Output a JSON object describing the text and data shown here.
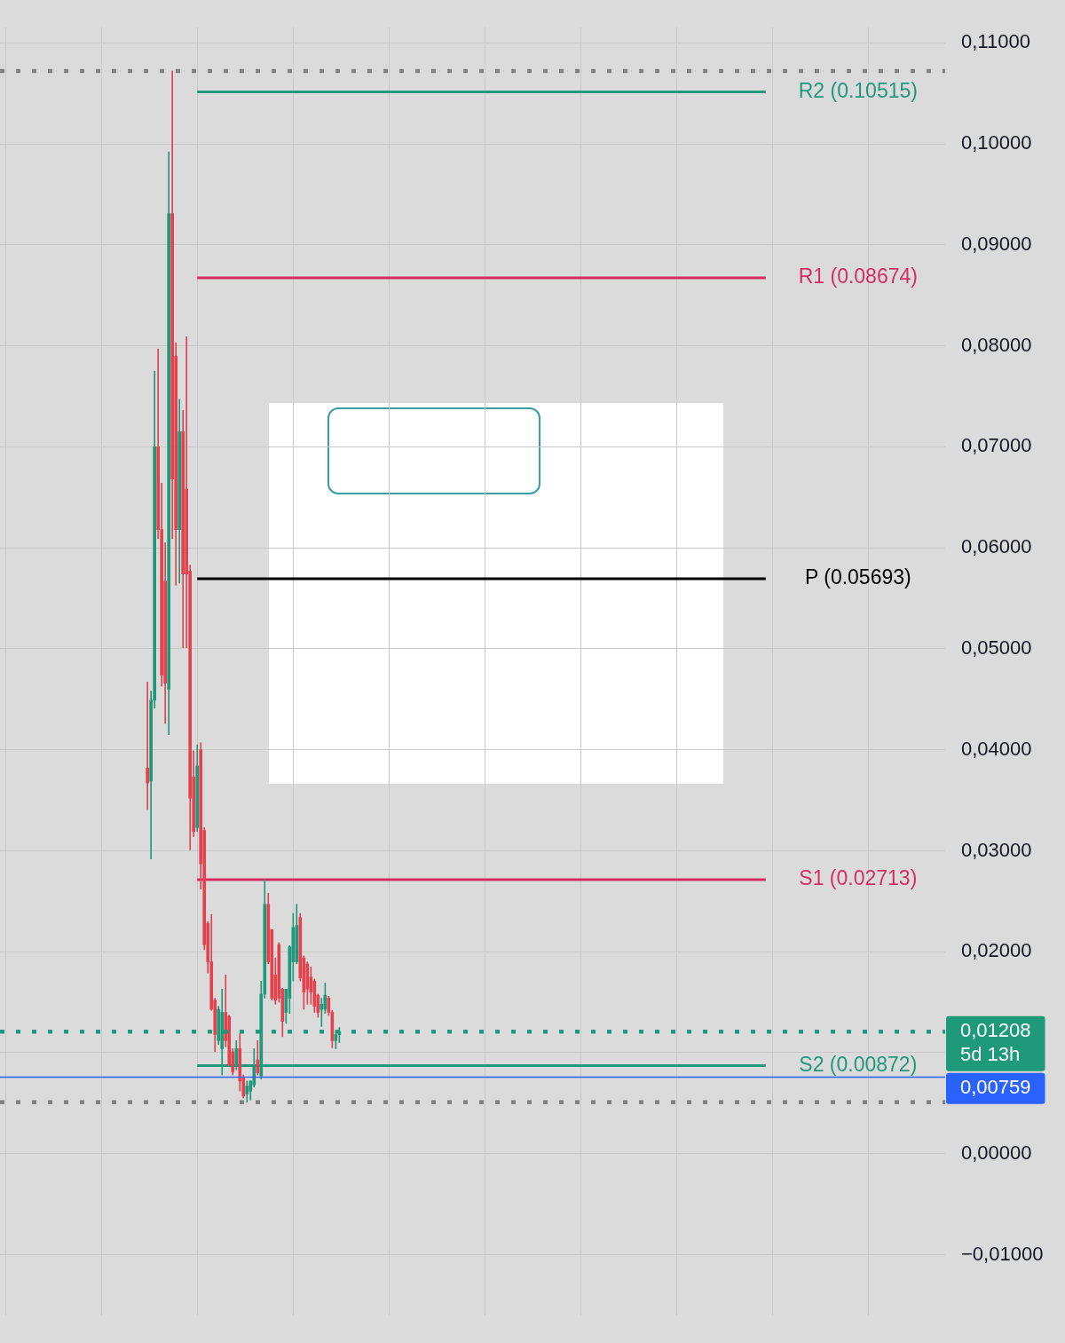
{
  "chart_data": {
    "type": "candlestick",
    "categories": [
      null,
      null,
      null,
      null,
      null,
      null,
      null,
      null,
      null,
      null,
      null,
      null,
      null,
      null,
      null,
      null,
      null,
      null,
      null,
      null,
      null,
      null,
      null,
      null,
      null,
      null,
      null,
      null,
      null,
      null,
      null,
      null,
      null,
      null,
      null,
      null,
      null,
      null,
      null,
      null,
      null,
      null,
      null,
      null,
      null,
      null,
      null,
      null,
      null,
      null,
      null,
      null,
      null,
      null,
      null,
      null,
      null,
      null,
      null,
      null,
      null,
      null,
      null,
      null,
      null,
      null,
      null,
      null,
      null,
      null,
      null,
      null,
      null,
      null,
      null,
      null,
      null,
      null,
      null,
      null,
      null,
      null,
      null,
      null,
      null,
      null,
      null,
      null,
      null,
      null,
      null,
      null,
      null,
      null,
      null,
      null,
      null,
      null,
      null,
      null,
      null,
      null,
      null,
      null,
      null,
      null,
      null,
      null,
      null,
      null,
      null,
      null,
      null,
      null,
      null,
      null,
      null,
      null,
      null,
      null,
      null,
      null,
      null,
      null,
      null,
      null,
      null,
      null,
      null,
      null,
      null,
      null,
      null,
      null,
      null,
      null,
      null,
      null,
      null,
      null,
      null,
      null,
      null,
      null,
      null,
      null,
      null,
      null,
      null,
      null,
      null,
      null,
      null,
      null,
      null,
      null,
      null,
      null,
      null,
      null,
      null,
      null,
      null,
      null,
      null,
      null,
      null,
      null,
      null,
      null,
      null,
      null,
      null,
      null,
      null,
      null,
      null,
      null,
      null,
      null,
      null,
      null,
      null,
      null,
      null,
      null,
      null,
      null,
      null,
      null,
      null,
      null,
      null,
      null,
      null,
      null,
      null,
      null,
      null,
      null,
      null,
      null,
      null,
      null,
      null,
      null,
      null,
      null,
      null,
      null,
      null,
      null,
      null,
      null,
      null,
      null,
      null,
      null,
      null,
      null,
      null,
      null,
      null,
      null,
      null,
      null,
      null,
      null,
      null,
      null,
      null,
      null,
      null,
      null,
      null,
      null,
      null,
      null,
      null,
      null,
      null,
      null,
      null,
      null,
      null,
      null,
      null,
      null,
      null,
      null,
      null,
      null,
      null,
      null,
      null,
      null,
      null,
      null,
      null,
      null,
      null,
      null,
      null,
      null,
      null,
      null
    ],
    "ohlc": [
      null,
      null,
      null,
      null,
      null,
      null,
      null,
      null,
      null,
      null,
      null,
      null,
      null,
      null,
      null,
      null,
      null,
      null,
      null,
      null,
      null,
      null,
      null,
      null,
      null,
      null,
      null,
      null,
      null,
      null,
      null,
      null,
      null,
      null,
      null,
      null,
      null,
      null,
      null,
      null,
      null,
      [
        0.0382,
        0.0467,
        0.0341,
        0.0367
      ],
      [
        0.0369,
        0.0458,
        0.0292,
        0.0449
      ],
      [
        0.0449,
        0.0775,
        0.0441,
        0.07
      ],
      [
        0.07,
        0.0797,
        0.0609,
        0.0618
      ],
      [
        0.0618,
        0.0664,
        0.0463,
        0.0474
      ],
      [
        0.0567,
        0.0605,
        0.0426,
        0.0466
      ],
      [
        0.046,
        0.0992,
        0.0415,
        0.0931
      ],
      [
        0.0931,
        0.1072,
        0.0609,
        0.0668
      ],
      [
        0.079,
        0.0803,
        0.0563,
        0.0618
      ],
      [
        0.0618,
        0.0747,
        0.0565,
        0.0715
      ],
      [
        0.0715,
        0.0736,
        0.0501,
        0.0574
      ],
      [
        0.0658,
        0.0809,
        0.0501,
        0.0574
      ],
      [
        0.0577,
        0.0583,
        0.0301,
        0.0352
      ],
      [
        0.0373,
        0.0399,
        0.0314,
        0.0319
      ],
      [
        0.0323,
        0.0405,
        0.0319,
        0.0384
      ],
      [
        0.04,
        0.0407,
        0.0262,
        0.0287
      ],
      [
        0.032,
        0.0323,
        0.0202,
        0.0207
      ],
      [
        0.0228,
        0.023,
        0.0179,
        0.019
      ],
      [
        0.019,
        0.0237,
        0.0142,
        0.0143
      ],
      [
        0.0152,
        0.0154,
        0.0101,
        0.0118
      ],
      [
        0.0112,
        0.0146,
        0.0108,
        0.0143
      ],
      [
        0.0104,
        0.0163,
        0.0078,
        0.014
      ],
      [
        0.014,
        0.0177,
        0.0106,
        0.0112
      ],
      [
        0.0136,
        0.0137,
        0.0087,
        0.0088
      ],
      [
        0.0101,
        0.0104,
        0.0078,
        0.0081
      ],
      [
        0.0087,
        0.0112,
        0.0083,
        0.0104
      ],
      [
        0.0104,
        0.0119,
        0.0062,
        0.0072
      ],
      [
        0.0076,
        0.0078,
        0.0055,
        0.0057
      ],
      [
        0.0059,
        0.0072,
        0.0051,
        0.0067
      ],
      [
        0.0062,
        0.0072,
        0.0053,
        0.0072
      ],
      [
        0.0068,
        0.0104,
        0.0066,
        0.0088
      ],
      [
        0.0093,
        0.0112,
        0.0078,
        0.008
      ],
      [
        0.0077,
        0.0171,
        0.0074,
        0.0158
      ],
      [
        0.0158,
        0.0272,
        0.0154,
        0.0247
      ],
      [
        0.0247,
        0.0258,
        0.0188,
        0.019
      ],
      [
        0.0222,
        0.0222,
        0.0152,
        0.0154
      ],
      [
        0.0177,
        0.0194,
        0.0148,
        0.0152
      ],
      [
        0.0207,
        0.0209,
        0.015,
        0.0154
      ],
      [
        0.0163,
        0.0164,
        0.0116,
        0.0131
      ],
      [
        0.014,
        0.0163,
        0.0129,
        0.0163
      ],
      [
        0.0154,
        0.0206,
        0.0139,
        0.0205
      ],
      [
        0.019,
        0.0238,
        0.0171,
        0.0224
      ],
      [
        0.019,
        0.0247,
        0.0188,
        0.0226
      ],
      [
        0.0234,
        0.0238,
        0.0171,
        0.0174
      ],
      [
        0.0194,
        0.0196,
        0.0143,
        0.016
      ],
      [
        0.0188,
        0.019,
        0.0148,
        0.0163
      ],
      [
        0.0175,
        0.0185,
        0.0148,
        0.016
      ],
      [
        0.0171,
        0.0173,
        0.014,
        0.0146
      ],
      [
        0.0157,
        0.0158,
        0.0135,
        0.014
      ],
      [
        0.0143,
        0.0154,
        0.0126,
        0.0148
      ],
      [
        0.0143,
        0.0169,
        0.0139,
        0.0157
      ],
      [
        0.0154,
        0.0156,
        0.0137,
        0.014
      ],
      [
        0.014,
        0.0142,
        0.0105,
        0.0112
      ],
      [
        0.0112,
        0.0122,
        0.0104,
        0.0118
      ],
      [
        0.0118,
        0.0125,
        0.011,
        0.01208
      ],
      null,
      null,
      null,
      null,
      null,
      null,
      null,
      null,
      null,
      null,
      null,
      null,
      null,
      null,
      null,
      null,
      null,
      null,
      null,
      null,
      null,
      null,
      null,
      null,
      null,
      null,
      null,
      null,
      null,
      null,
      null,
      null,
      null,
      null,
      null,
      null,
      null,
      null,
      null,
      null,
      null,
      null,
      null,
      null,
      null,
      null,
      null,
      null,
      null,
      null,
      null,
      null,
      null,
      null,
      null,
      null,
      null,
      null,
      null,
      null,
      null,
      null,
      null,
      null,
      null,
      null,
      null,
      null,
      null,
      null,
      null,
      null,
      null,
      null,
      null,
      null,
      null,
      null,
      null,
      null,
      null,
      null,
      null,
      null,
      null,
      null,
      null,
      null,
      null,
      null,
      null,
      null,
      null,
      null,
      null,
      null,
      null,
      null,
      null,
      null,
      null,
      null,
      null,
      null,
      null,
      null,
      null,
      null,
      null,
      null,
      null,
      null,
      null,
      null,
      null,
      null,
      null,
      null,
      null,
      null,
      null,
      null,
      null,
      null,
      null,
      null,
      null,
      null,
      null,
      null,
      null,
      null,
      null,
      null,
      null,
      null,
      null,
      null,
      null,
      null,
      null,
      null,
      null,
      null,
      null,
      null,
      null,
      null,
      null,
      null,
      null,
      null,
      null,
      null,
      null,
      null,
      null,
      null,
      null,
      null,
      null,
      null,
      null,
      null,
      null,
      null,
      null,
      null,
      null,
      null
    ],
    "colors": [
      null,
      null,
      null,
      null,
      null,
      null,
      null,
      null,
      null,
      null,
      null,
      null,
      null,
      null,
      null,
      null,
      null,
      null,
      null,
      null,
      null,
      null,
      null,
      null,
      null,
      null,
      null,
      null,
      null,
      null,
      null,
      null,
      null,
      null,
      null,
      null,
      null,
      null,
      null,
      null,
      null,
      "#e2434f",
      "#22977b",
      "#22977b",
      "#e2434f",
      "#e2434f",
      "#e2434f",
      "#22977b",
      "#e2434f",
      "#e2434f",
      "#22977b",
      "#e2434f",
      "#e2434f",
      "#e2434f",
      "#e2434f",
      "#22977b",
      "#e2434f",
      "#e2434f",
      "#e2434f",
      "#e2434f",
      "#e2434f",
      "#22977b",
      "#22977b",
      "#e2434f",
      "#e2434f",
      "#e2434f",
      "#22977b",
      "#e2434f",
      "#e2434f",
      "#22977b",
      "#22977b",
      "#22977b",
      "#e2434f",
      "#22977b",
      "#22977b",
      "#e2434f",
      "#e2434f",
      "#e2434f",
      "#e2434f",
      "#e2434f",
      "#22977b",
      "#22977b",
      "#22977b",
      "#22977b",
      "#e2434f",
      "#e2434f",
      "#e2434f",
      "#e2434f",
      "#e2434f",
      "#e2434f",
      "#22977b",
      "#22977b",
      "#e2434f",
      "#e2434f",
      "#22977b",
      "#22977b",
      null,
      null,
      null,
      null,
      null,
      null,
      null,
      null,
      null,
      null,
      null,
      null,
      null,
      null,
      null,
      null,
      null,
      null,
      null,
      null,
      null,
      null,
      null,
      null,
      null,
      null,
      null,
      null,
      null,
      null,
      null,
      null,
      null,
      null,
      null,
      null,
      null,
      null,
      null,
      null,
      null,
      null,
      null,
      null,
      null,
      null,
      null,
      null,
      null,
      null,
      null,
      null,
      null,
      null,
      null,
      null,
      null,
      null,
      null,
      null,
      null,
      null,
      null,
      null,
      null,
      null,
      null,
      null,
      null,
      null,
      null,
      null,
      null,
      null,
      null,
      null,
      null,
      null,
      null,
      null,
      null,
      null,
      null,
      null,
      null,
      null,
      null,
      null,
      null,
      null,
      null,
      null,
      null,
      null,
      null,
      null,
      null,
      null,
      null,
      null,
      null,
      null,
      null,
      null,
      null,
      null,
      null,
      null,
      null,
      null,
      null,
      null,
      null,
      null,
      null,
      null,
      null,
      null,
      null,
      null,
      null,
      null,
      null,
      null,
      null,
      null,
      null,
      null,
      null,
      null,
      null,
      null,
      null,
      null,
      null,
      null,
      null,
      null,
      null,
      null,
      null,
      null,
      null,
      null,
      null,
      null,
      null,
      null,
      null,
      null,
      null,
      null,
      null,
      null,
      null,
      null,
      null,
      null,
      null,
      null,
      null,
      null,
      null,
      null,
      null,
      null,
      null,
      null,
      null,
      null
    ],
    "series": [
      {
        "type": "line",
        "name": "R2 (0.10515)",
        "color": "#22997c",
        "values": [
          null,
          null,
          null,
          null,
          null,
          null,
          null,
          null,
          null,
          null,
          null,
          null,
          null,
          null,
          null,
          null,
          null,
          null,
          null,
          null,
          null,
          null,
          null,
          null,
          null,
          null,
          null,
          null,
          null,
          null,
          null,
          null,
          null,
          null,
          null,
          null,
          null,
          null,
          null,
          null,
          null,
          null,
          null,
          null,
          null,
          null,
          null,
          null,
          null,
          null,
          null,
          null,
          null,
          null,
          null,
          0.10515,
          0.10515,
          0.10515,
          0.10515,
          0.10515,
          0.10515,
          0.10515,
          0.10515,
          0.10515,
          0.10515,
          0.10515,
          0.10515,
          0.10515,
          0.10515,
          0.10515,
          0.10515,
          0.10515,
          0.10515,
          0.10515,
          0.10515,
          0.10515,
          0.10515,
          0.10515,
          0.10515,
          0.10515,
          0.10515,
          0.10515,
          0.10515,
          0.10515,
          0.10515,
          0.10515,
          0.10515,
          0.10515,
          0.10515,
          0.10515,
          0.10515,
          0.10515,
          0.10515,
          0.10515,
          0.10515,
          0.10515,
          0.10515,
          0.10515,
          0.10515,
          0.10515,
          0.10515,
          0.10515,
          0.10515,
          0.10515,
          0.10515,
          0.10515,
          0.10515,
          0.10515,
          0.10515,
          0.10515,
          0.10515,
          0.10515,
          0.10515,
          0.10515,
          0.10515,
          0.10515,
          0.10515,
          0.10515,
          0.10515,
          0.10515,
          0.10515,
          0.10515,
          0.10515,
          0.10515,
          0.10515,
          0.10515,
          0.10515,
          0.10515,
          0.10515,
          0.10515,
          0.10515,
          0.10515,
          0.10515,
          0.10515,
          0.10515,
          0.10515,
          0.10515,
          0.10515,
          0.10515,
          0.10515,
          0.10515,
          0.10515,
          0.10515,
          0.10515,
          0.10515,
          0.10515,
          0.10515,
          0.10515,
          0.10515,
          0.10515,
          0.10515,
          0.10515,
          0.10515,
          0.10515,
          0.10515,
          0.10515,
          0.10515,
          0.10515,
          0.10515,
          0.10515,
          0.10515,
          0.10515,
          0.10515,
          0.10515,
          0.10515,
          0.10515,
          0.10515,
          0.10515,
          0.10515,
          0.10515,
          0.10515,
          0.10515,
          0.10515,
          0.10515,
          0.10515,
          0.10515,
          0.10515,
          0.10515,
          0.10515,
          0.10515,
          0.10515,
          0.10515,
          0.10515,
          0.10515,
          0.10515,
          0.10515,
          0.10515,
          0.10515,
          0.10515,
          0.10515,
          0.10515,
          0.10515,
          0.10515,
          0.10515,
          0.10515,
          0.10515,
          0.10515,
          0.10515,
          0.10515,
          0.10515,
          0.10515,
          0.10515,
          0.10515,
          0.10515,
          0.10515,
          0.10515,
          0.10515,
          0.10515,
          0.10515,
          0.10515,
          0.10515,
          0.10515,
          0.10515,
          0.10515,
          0.10515,
          0.10515,
          null,
          null,
          null,
          null,
          null,
          null,
          null,
          null,
          null,
          null,
          null,
          null,
          null,
          null,
          null,
          null,
          null,
          null,
          null,
          null,
          null,
          null,
          null,
          null,
          null,
          null,
          null,
          null,
          null,
          null,
          null,
          null,
          null,
          null,
          null,
          null,
          null,
          null,
          null,
          null,
          null,
          null,
          null,
          null,
          null,
          null,
          null,
          null,
          null,
          null
        ]
      },
      {
        "type": "line",
        "name": "R1 (0.08674)",
        "color": "#d62e63",
        "values": [
          null,
          null,
          null,
          null,
          null,
          null,
          null,
          null,
          null,
          null,
          null,
          null,
          null,
          null,
          null,
          null,
          null,
          null,
          null,
          null,
          null,
          null,
          null,
          null,
          null,
          null,
          null,
          null,
          null,
          null,
          null,
          null,
          null,
          null,
          null,
          null,
          null,
          null,
          null,
          null,
          null,
          null,
          null,
          null,
          null,
          null,
          null,
          null,
          null,
          null,
          null,
          null,
          null,
          null,
          null,
          0.08674,
          0.08674,
          0.08674,
          0.08674,
          0.08674,
          0.08674,
          0.08674,
          0.08674,
          0.08674,
          0.08674,
          0.08674,
          0.08674,
          0.08674,
          0.08674,
          0.08674,
          0.08674,
          0.08674,
          0.08674,
          0.08674,
          0.08674,
          0.08674,
          0.08674,
          0.08674,
          0.08674,
          0.08674,
          0.08674,
          0.08674,
          0.08674,
          0.08674,
          0.08674,
          0.08674,
          0.08674,
          0.08674,
          0.08674,
          0.08674,
          0.08674,
          0.08674,
          0.08674,
          0.08674,
          0.08674,
          0.08674,
          0.08674,
          0.08674,
          0.08674,
          0.08674,
          0.08674,
          0.08674,
          0.08674,
          0.08674,
          0.08674,
          0.08674,
          0.08674,
          0.08674,
          0.08674,
          0.08674,
          0.08674,
          0.08674,
          0.08674,
          0.08674,
          0.08674,
          0.08674,
          0.08674,
          0.08674,
          0.08674,
          0.08674,
          0.08674,
          0.08674,
          0.08674,
          0.08674,
          0.08674,
          0.08674,
          0.08674,
          0.08674,
          0.08674,
          0.08674,
          0.08674,
          0.08674,
          0.08674,
          0.08674,
          0.08674,
          0.08674,
          0.08674,
          0.08674,
          0.08674,
          0.08674,
          0.08674,
          0.08674,
          0.08674,
          0.08674,
          0.08674,
          0.08674,
          0.08674,
          0.08674,
          0.08674,
          0.08674,
          0.08674,
          0.08674,
          0.08674,
          0.08674,
          0.08674,
          0.08674,
          0.08674,
          0.08674,
          0.08674,
          0.08674,
          0.08674,
          0.08674,
          0.08674,
          0.08674,
          0.08674,
          0.08674,
          0.08674,
          0.08674,
          0.08674,
          0.08674,
          0.08674,
          0.08674,
          0.08674,
          0.08674,
          0.08674,
          0.08674,
          0.08674,
          0.08674,
          0.08674,
          0.08674,
          0.08674,
          0.08674,
          0.08674,
          0.08674,
          0.08674,
          0.08674,
          0.08674,
          0.08674,
          0.08674,
          0.08674,
          0.08674,
          0.08674,
          0.08674,
          0.08674,
          0.08674,
          0.08674,
          0.08674,
          0.08674,
          0.08674,
          0.08674,
          0.08674,
          0.08674,
          0.08674,
          0.08674,
          0.08674,
          0.08674,
          0.08674,
          0.08674,
          0.08674,
          0.08674,
          0.08674,
          0.08674,
          0.08674,
          0.08674,
          0.08674,
          0.08674,
          null,
          null,
          null,
          null,
          null,
          null,
          null,
          null,
          null,
          null,
          null,
          null,
          null,
          null,
          null,
          null,
          null,
          null,
          null,
          null,
          null,
          null,
          null,
          null,
          null,
          null,
          null,
          null,
          null,
          null,
          null,
          null,
          null,
          null,
          null,
          null,
          null,
          null,
          null,
          null,
          null,
          null,
          null,
          null,
          null,
          null,
          null,
          null,
          null,
          null
        ]
      },
      {
        "type": "line",
        "name": "P (0.05693)",
        "color": "#000000",
        "values": [
          null,
          null,
          null,
          null,
          null,
          null,
          null,
          null,
          null,
          null,
          null,
          null,
          null,
          null,
          null,
          null,
          null,
          null,
          null,
          null,
          null,
          null,
          null,
          null,
          null,
          null,
          null,
          null,
          null,
          null,
          null,
          null,
          null,
          null,
          null,
          null,
          null,
          null,
          null,
          null,
          null,
          null,
          null,
          null,
          null,
          null,
          null,
          null,
          null,
          null,
          null,
          null,
          null,
          null,
          null,
          0.05693,
          0.05693,
          0.05693,
          0.05693,
          0.05693,
          0.05693,
          0.05693,
          0.05693,
          0.05693,
          0.05693,
          0.05693,
          0.05693,
          0.05693,
          0.05693,
          0.05693,
          0.05693,
          0.05693,
          0.05693,
          0.05693,
          0.05693,
          0.05693,
          0.05693,
          0.05693,
          0.05693,
          0.05693,
          0.05693,
          0.05693,
          0.05693,
          0.05693,
          0.05693,
          0.05693,
          0.05693,
          0.05693,
          0.05693,
          0.05693,
          0.05693,
          0.05693,
          0.05693,
          0.05693,
          0.05693,
          0.05693,
          0.05693,
          0.05693,
          0.05693,
          0.05693,
          0.05693,
          0.05693,
          0.05693,
          0.05693,
          0.05693,
          0.05693,
          0.05693,
          0.05693,
          0.05693,
          0.05693,
          0.05693,
          0.05693,
          0.05693,
          0.05693,
          0.05693,
          0.05693,
          0.05693,
          0.05693,
          0.05693,
          0.05693,
          0.05693,
          0.05693,
          0.05693,
          0.05693,
          0.05693,
          0.05693,
          0.05693,
          0.05693,
          0.05693,
          0.05693,
          0.05693,
          0.05693,
          0.05693,
          0.05693,
          0.05693,
          0.05693,
          0.05693,
          0.05693,
          0.05693,
          0.05693,
          0.05693,
          0.05693,
          0.05693,
          0.05693,
          0.05693,
          0.05693,
          0.05693,
          0.05693,
          0.05693,
          0.05693,
          0.05693,
          0.05693,
          0.05693,
          0.05693,
          0.05693,
          0.05693,
          0.05693,
          0.05693,
          0.05693,
          0.05693,
          0.05693,
          0.05693,
          0.05693,
          0.05693,
          0.05693,
          0.05693,
          0.05693,
          0.05693,
          0.05693,
          0.05693,
          0.05693,
          0.05693,
          0.05693,
          0.05693,
          0.05693,
          0.05693,
          0.05693,
          0.05693,
          0.05693,
          0.05693,
          0.05693,
          0.05693,
          0.05693,
          0.05693,
          0.05693,
          0.05693,
          0.05693,
          0.05693,
          0.05693,
          0.05693,
          0.05693,
          0.05693,
          0.05693,
          0.05693,
          0.05693,
          0.05693,
          0.05693,
          0.05693,
          0.05693,
          0.05693,
          0.05693,
          0.05693,
          0.05693,
          0.05693,
          0.05693,
          0.05693,
          0.05693,
          0.05693,
          0.05693,
          0.05693,
          0.05693,
          0.05693,
          0.05693,
          0.05693,
          0.05693,
          0.05693,
          null,
          null,
          null,
          null,
          null,
          null,
          null,
          null,
          null,
          null,
          null,
          null,
          null,
          null,
          null,
          null,
          null,
          null,
          null,
          null,
          null,
          null,
          null,
          null,
          null,
          null,
          null,
          null,
          null,
          null,
          null,
          null,
          null,
          null,
          null,
          null,
          null,
          null,
          null,
          null,
          null,
          null,
          null,
          null,
          null,
          null,
          null,
          null,
          null,
          null
        ]
      },
      {
        "type": "line",
        "name": "S1 (0.02713)",
        "color": "#d62e63",
        "values": [
          null,
          null,
          null,
          null,
          null,
          null,
          null,
          null,
          null,
          null,
          null,
          null,
          null,
          null,
          null,
          null,
          null,
          null,
          null,
          null,
          null,
          null,
          null,
          null,
          null,
          null,
          null,
          null,
          null,
          null,
          null,
          null,
          null,
          null,
          null,
          null,
          null,
          null,
          null,
          null,
          null,
          null,
          null,
          null,
          null,
          null,
          null,
          null,
          null,
          null,
          null,
          null,
          null,
          null,
          null,
          0.02713,
          0.02713,
          0.02713,
          0.02713,
          0.02713,
          0.02713,
          0.02713,
          0.02713,
          0.02713,
          0.02713,
          0.02713,
          0.02713,
          0.02713,
          0.02713,
          0.02713,
          0.02713,
          0.02713,
          0.02713,
          0.02713,
          0.02713,
          0.02713,
          0.02713,
          0.02713,
          0.02713,
          0.02713,
          0.02713,
          0.02713,
          0.02713,
          0.02713,
          0.02713,
          0.02713,
          0.02713,
          0.02713,
          0.02713,
          0.02713,
          0.02713,
          0.02713,
          0.02713,
          0.02713,
          0.02713,
          0.02713,
          0.02713,
          0.02713,
          0.02713,
          0.02713,
          0.02713,
          0.02713,
          0.02713,
          0.02713,
          0.02713,
          0.02713,
          0.02713,
          0.02713,
          0.02713,
          0.02713,
          0.02713,
          0.02713,
          0.02713,
          0.02713,
          0.02713,
          0.02713,
          0.02713,
          0.02713,
          0.02713,
          0.02713,
          0.02713,
          0.02713,
          0.02713,
          0.02713,
          0.02713,
          0.02713,
          0.02713,
          0.02713,
          0.02713,
          0.02713,
          0.02713,
          0.02713,
          0.02713,
          0.02713,
          0.02713,
          0.02713,
          0.02713,
          0.02713,
          0.02713,
          0.02713,
          0.02713,
          0.02713,
          0.02713,
          0.02713,
          0.02713,
          0.02713,
          0.02713,
          0.02713,
          0.02713,
          0.02713,
          0.02713,
          0.02713,
          0.02713,
          0.02713,
          0.02713,
          0.02713,
          0.02713,
          0.02713,
          0.02713,
          0.02713,
          0.02713,
          0.02713,
          0.02713,
          0.02713,
          0.02713,
          0.02713,
          0.02713,
          0.02713,
          0.02713,
          0.02713,
          0.02713,
          0.02713,
          0.02713,
          0.02713,
          0.02713,
          0.02713,
          0.02713,
          0.02713,
          0.02713,
          0.02713,
          0.02713,
          0.02713,
          0.02713,
          0.02713,
          0.02713,
          0.02713,
          0.02713,
          0.02713,
          0.02713,
          0.02713,
          0.02713,
          0.02713,
          0.02713,
          0.02713,
          0.02713,
          0.02713,
          0.02713,
          0.02713,
          0.02713,
          0.02713,
          0.02713,
          0.02713,
          0.02713,
          0.02713,
          0.02713,
          0.02713,
          0.02713,
          0.02713,
          0.02713,
          0.02713,
          0.02713,
          0.02713,
          0.02713,
          0.02713,
          0.02713,
          0.02713,
          null,
          null,
          null,
          null,
          null,
          null,
          null,
          null,
          null,
          null,
          null,
          null,
          null,
          null,
          null,
          null,
          null,
          null,
          null,
          null,
          null,
          null,
          null,
          null,
          null,
          null,
          null,
          null,
          null,
          null,
          null,
          null,
          null,
          null,
          null,
          null,
          null,
          null,
          null,
          null,
          null,
          null,
          null,
          null,
          null,
          null,
          null,
          null,
          null,
          null
        ]
      },
      {
        "type": "line",
        "name": "S2 (0.00872)",
        "color": "#22997c",
        "values": [
          null,
          null,
          null,
          null,
          null,
          null,
          null,
          null,
          null,
          null,
          null,
          null,
          null,
          null,
          null,
          null,
          null,
          null,
          null,
          null,
          null,
          null,
          null,
          null,
          null,
          null,
          null,
          null,
          null,
          null,
          null,
          null,
          null,
          null,
          null,
          null,
          null,
          null,
          null,
          null,
          null,
          null,
          null,
          null,
          null,
          null,
          null,
          null,
          null,
          null,
          null,
          null,
          null,
          null,
          null,
          0.00872,
          0.00872,
          0.00872,
          0.00872,
          0.00872,
          0.00872,
          0.00872,
          0.00872,
          0.00872,
          0.00872,
          0.00872,
          0.00872,
          0.00872,
          0.00872,
          0.00872,
          0.00872,
          0.00872,
          0.00872,
          0.00872,
          0.00872,
          0.00872,
          0.00872,
          0.00872,
          0.00872,
          0.00872,
          0.00872,
          0.00872,
          0.00872,
          0.00872,
          0.00872,
          0.00872,
          0.00872,
          0.00872,
          0.00872,
          0.00872,
          0.00872,
          0.00872,
          0.00872,
          0.00872,
          0.00872,
          0.00872,
          0.00872,
          0.00872,
          0.00872,
          0.00872,
          0.00872,
          0.00872,
          0.00872,
          0.00872,
          0.00872,
          0.00872,
          0.00872,
          0.00872,
          0.00872,
          0.00872,
          0.00872,
          0.00872,
          0.00872,
          0.00872,
          0.00872,
          0.00872,
          0.00872,
          0.00872,
          0.00872,
          0.00872,
          0.00872,
          0.00872,
          0.00872,
          0.00872,
          0.00872,
          0.00872,
          0.00872,
          0.00872,
          0.00872,
          0.00872,
          0.00872,
          0.00872,
          0.00872,
          0.00872,
          0.00872,
          0.00872,
          0.00872,
          0.00872,
          0.00872,
          0.00872,
          0.00872,
          0.00872,
          0.00872,
          0.00872,
          0.00872,
          0.00872,
          0.00872,
          0.00872,
          0.00872,
          0.00872,
          0.00872,
          0.00872,
          0.00872,
          0.00872,
          0.00872,
          0.00872,
          0.00872,
          0.00872,
          0.00872,
          0.00872,
          0.00872,
          0.00872,
          0.00872,
          0.00872,
          0.00872,
          0.00872,
          0.00872,
          0.00872,
          0.00872,
          0.00872,
          0.00872,
          0.00872,
          0.00872,
          0.00872,
          0.00872,
          0.00872,
          0.00872,
          0.00872,
          0.00872,
          0.00872,
          0.00872,
          0.00872,
          0.00872,
          0.00872,
          0.00872,
          0.00872,
          0.00872,
          0.00872,
          0.00872,
          0.00872,
          0.00872,
          0.00872,
          0.00872,
          0.00872,
          0.00872,
          0.00872,
          0.00872,
          0.00872,
          0.00872,
          0.00872,
          0.00872,
          0.00872,
          0.00872,
          0.00872,
          0.00872,
          0.00872,
          0.00872,
          0.00872,
          0.00872,
          0.00872,
          0.00872,
          0.00872,
          0.00872,
          0.00872,
          0.00872,
          0.00872,
          null,
          null,
          null,
          null,
          null,
          null,
          null,
          null,
          null,
          null,
          null,
          null,
          null,
          null,
          null,
          null,
          null,
          null,
          null,
          null,
          null,
          null,
          null,
          null,
          null,
          null,
          null,
          null,
          null,
          null,
          null,
          null,
          null,
          null,
          null,
          null,
          null,
          null,
          null,
          null,
          null,
          null,
          null,
          null,
          null,
          null,
          null,
          null,
          null,
          null
        ]
      }
    ],
    "ylim": [
      -0.016,
      0.1115
    ],
    "yticks": [
      {
        "value": 0.11,
        "label": "0,11000"
      },
      {
        "value": 0.1,
        "label": "0,10000"
      },
      {
        "value": 0.09,
        "label": "0,09000"
      },
      {
        "value": 0.08,
        "label": "0,08000"
      },
      {
        "value": 0.07,
        "label": "0,07000"
      },
      {
        "value": 0.06,
        "label": "0,06000"
      },
      {
        "value": 0.05,
        "label": "0,05000"
      },
      {
        "value": 0.04,
        "label": "0,04000"
      },
      {
        "value": 0.03,
        "label": "0,03000"
      },
      {
        "value": 0.02,
        "label": "0,02000"
      },
      {
        "value": 0.01,
        "label": null
      },
      {
        "value": 0,
        "label": "0,00000"
      },
      {
        "value": -0.01,
        "label": "−0,01000"
      }
    ],
    "ref_lines": [
      {
        "axis": "y",
        "value": 0.1072,
        "color": "#808080",
        "line_style": "dotted"
      },
      {
        "axis": "y",
        "value": 0.0051,
        "color": "#808080",
        "line_style": "dotted"
      },
      {
        "axis": "y",
        "value": 0.01208,
        "label": "0,01208\n5d 13h",
        "color": "#1e9a7b",
        "line_style": "dotted"
      },
      {
        "axis": "y",
        "value": 0.00759,
        "label": "0,00759",
        "color": "#2962ff",
        "line_style": "solid"
      }
    ],
    "grid": true,
    "tick_labels": "y"
  }
}
